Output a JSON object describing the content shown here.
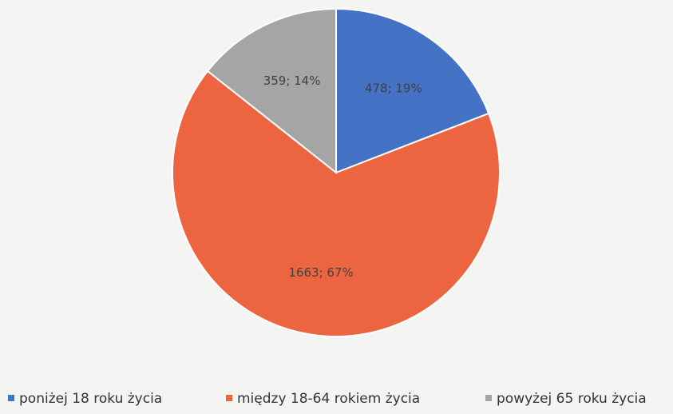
{
  "chart_data": {
    "type": "pie",
    "categories": [
      "poniżej 18 roku życia",
      "między 18-64 rokiem życia",
      "powyżej 65 roku życia"
    ],
    "values": [
      478,
      1663,
      359
    ],
    "value_labels": [
      "478; 19%",
      "1663; 67%",
      "359; 14%"
    ],
    "colors": [
      "#4472c4",
      "#ed6540",
      "#a5a5a5"
    ],
    "legend": "bottom"
  }
}
